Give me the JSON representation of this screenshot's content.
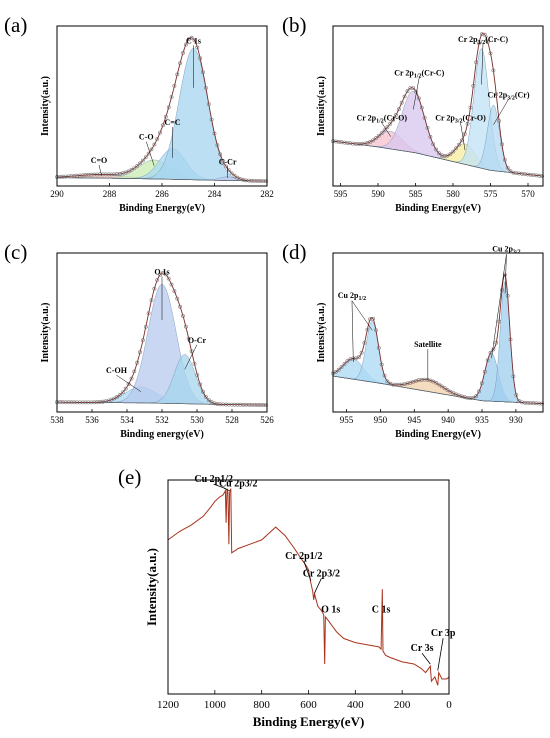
{
  "chart_data": [
    {
      "panel": "(a)",
      "type": "line",
      "xlabel": "Binding Energy(eV)",
      "ylabel": "Intensity(a.u.)",
      "xlim": [
        290,
        282
      ],
      "xticks": [
        290,
        288,
        286,
        284,
        282
      ],
      "ylim": [
        0,
        100
      ],
      "baseline": [
        [
          290,
          3
        ],
        [
          288,
          2.6
        ],
        [
          286,
          2
        ],
        [
          284,
          1.2
        ],
        [
          282,
          0.6
        ]
      ],
      "series": [
        {
          "color": "#f4c0b4",
          "peaks": [
            {
              "label": "C=O",
              "center": 288.3,
              "height": 2.5,
              "width": 0.9
            }
          ]
        },
        {
          "color": "#c9ecb0",
          "peaks": [
            {
              "label": "C-O",
              "center": 286.3,
              "height": 13,
              "width": 0.6
            }
          ]
        },
        {
          "color": "#a9d8f3",
          "peaks": [
            {
              "label": "C=C",
              "center": 285.6,
              "height": 21,
              "width": 0.5
            }
          ]
        },
        {
          "color": "#a6d4f0",
          "peaks": [
            {
              "label": "C 1s",
              "center": 284.8,
              "height": 90,
              "width": 0.55
            }
          ]
        },
        {
          "color": "#c4c8ee",
          "peaks": [
            {
              "label": "C-Cr",
              "center": 283.5,
              "height": 2.5,
              "width": 0.3
            }
          ]
        }
      ]
    },
    {
      "panel": "(b)",
      "type": "line",
      "xlabel": "Binding Energy(eV)",
      "ylabel": "Intensity(a.u.)",
      "xlim": [
        596,
        568
      ],
      "xticks": [
        595,
        590,
        585,
        580,
        575,
        570
      ],
      "ylim": [
        0,
        100
      ],
      "baseline": [
        [
          596,
          28
        ],
        [
          590,
          24
        ],
        [
          585,
          20
        ],
        [
          580,
          14
        ],
        [
          575,
          8
        ],
        [
          568,
          4
        ]
      ],
      "series": [
        {
          "color": "#f4c0cc",
          "peaks": [
            {
              "label": "Cr 2p1/2(Cr-O)",
              "center": 588.3,
              "height": 12,
              "width": 1.6
            }
          ]
        },
        {
          "color": "#d7c6ee",
          "peaks": [
            {
              "label": "Cr 2p1/2(Cr-C)",
              "center": 585.3,
              "height": 42,
              "width": 1.5
            }
          ]
        },
        {
          "color": "#f7ec9c",
          "peaks": [
            {
              "label": "Cr 2p3/2(Cr-O)",
              "center": 578.4,
              "height": 14,
              "width": 1.3
            }
          ]
        },
        {
          "color": "#bfe2f6",
          "peaks": [
            {
              "label": "Cr 2p3/2(Cr-C)",
              "center": 576.2,
              "height": 82,
              "width": 1.0
            }
          ]
        },
        {
          "color": "#b4d8f2",
          "peaks": [
            {
              "label": "Cr 2p3/2(Cr)",
              "center": 574.6,
              "height": 45,
              "width": 0.8
            }
          ]
        }
      ]
    },
    {
      "panel": "(c)",
      "type": "line",
      "xlabel": "Binding energy(eV)",
      "ylabel": "Intensity(a.u.)",
      "xlim": [
        538,
        526
      ],
      "xticks": [
        538,
        536,
        534,
        532,
        530,
        528,
        526
      ],
      "ylim": [
        0,
        100
      ],
      "baseline": [
        [
          538,
          4
        ],
        [
          533,
          3.5
        ],
        [
          529,
          2.5
        ],
        [
          526,
          2
        ]
      ],
      "series": [
        {
          "color": "#a9d8f3",
          "peaks": [
            {
              "label": "C-OH",
              "center": 533.2,
              "height": 11,
              "width": 0.9
            }
          ]
        },
        {
          "color": "#b8c9ee",
          "peaks": [
            {
              "label": "O 1s",
              "center": 532.0,
              "height": 82,
              "width": 0.8
            }
          ]
        },
        {
          "color": "#a5d6ee",
          "peaks": [
            {
              "label": "O-Cr",
              "center": 530.7,
              "height": 34,
              "width": 0.6
            }
          ]
        }
      ]
    },
    {
      "panel": "(d)",
      "type": "line",
      "xlabel": "Binding Energy(eV)",
      "ylabel": "Intensity(a.u.)",
      "xlim": [
        957,
        926
      ],
      "xticks": [
        955,
        950,
        945,
        940,
        935,
        930
      ],
      "ylim": [
        0,
        100
      ],
      "baseline": [
        [
          957,
          22
        ],
        [
          950,
          17
        ],
        [
          945,
          13
        ],
        [
          940,
          9
        ],
        [
          935,
          5
        ],
        [
          926,
          3
        ]
      ],
      "series": [
        {
          "color": "#a9d8f3",
          "peaks": [
            {
              "label": "Cu 2p1/2",
              "center": 954.0,
              "height": 14,
              "width": 1.5
            },
            {
              "label": "Cu 2p1/2",
              "center": 951.2,
              "height": 42,
              "width": 0.9
            }
          ]
        },
        {
          "color": "#f3d0a8",
          "peaks": [
            {
              "label": "Satellite",
              "center": 943.0,
              "height": 8,
              "width": 2.2
            }
          ]
        },
        {
          "color": "#9fcdef",
          "peaks": [
            {
              "label": "Cu 2p3/2",
              "center": 933.6,
              "height": 33,
              "width": 1.0
            },
            {
              "label": "Cu 2p3/2",
              "center": 931.6,
              "height": 83,
              "width": 0.7
            }
          ]
        }
      ]
    },
    {
      "panel": "(e)",
      "type": "line",
      "xlabel": "Binding Energy(eV)",
      "ylabel": "Intensity(a.u.)",
      "xlim": [
        1200,
        0
      ],
      "xticks": [
        1200,
        1000,
        800,
        600,
        400,
        200,
        0
      ],
      "ylim": [
        0,
        100
      ],
      "series": [
        {
          "color": "#a8331c",
          "points": [
            [
              1200,
              72
            ],
            [
              1150,
              76
            ],
            [
              1100,
              79
            ],
            [
              1050,
              83
            ],
            [
              1020,
              87
            ],
            [
              1000,
              90
            ],
            [
              980,
              92
            ],
            [
              965,
              93
            ],
            [
              955,
              95
            ],
            [
              952,
              80
            ],
            [
              948,
              96
            ],
            [
              944,
              94
            ],
            [
              940,
              70
            ],
            [
              937,
              94
            ],
            [
              932,
              96
            ],
            [
              928,
              66
            ],
            [
              900,
              68
            ],
            [
              850,
              70
            ],
            [
              800,
              72
            ],
            [
              760,
              76
            ],
            [
              740,
              78
            ],
            [
              720,
              76
            ],
            [
              700,
              74
            ],
            [
              660,
              68
            ],
            [
              630,
              63
            ],
            [
              610,
              60
            ],
            [
              600,
              58
            ],
            [
              590,
              52
            ],
            [
              582,
              48
            ],
            [
              578,
              44
            ],
            [
              574,
              47
            ],
            [
              570,
              45
            ],
            [
              560,
              41
            ],
            [
              545,
              39
            ],
            [
              535,
              37
            ],
            [
              531,
              14
            ],
            [
              528,
              36
            ],
            [
              520,
              35
            ],
            [
              480,
              29
            ],
            [
              450,
              26
            ],
            [
              400,
              24
            ],
            [
              350,
              23
            ],
            [
              300,
              22
            ],
            [
              290,
              21
            ],
            [
              285,
              49
            ],
            [
              282,
              20
            ],
            [
              270,
              18
            ],
            [
              250,
              17
            ],
            [
              200,
              15
            ],
            [
              150,
              14
            ],
            [
              120,
              12
            ],
            [
              100,
              10
            ],
            [
              80,
              13
            ],
            [
              75,
              6
            ],
            [
              60,
              8
            ],
            [
              48,
              4
            ],
            [
              44,
              10
            ],
            [
              30,
              7
            ],
            [
              10,
              7
            ],
            [
              0,
              8
            ]
          ]
        }
      ],
      "annotations": [
        "Cu 2p1/2",
        "Cu 2p3/2",
        "Cr 2p1/2",
        "Cr 2p3/2",
        "O 1s",
        "C 1s",
        "Cr 3s",
        "Cr 3p"
      ]
    }
  ]
}
